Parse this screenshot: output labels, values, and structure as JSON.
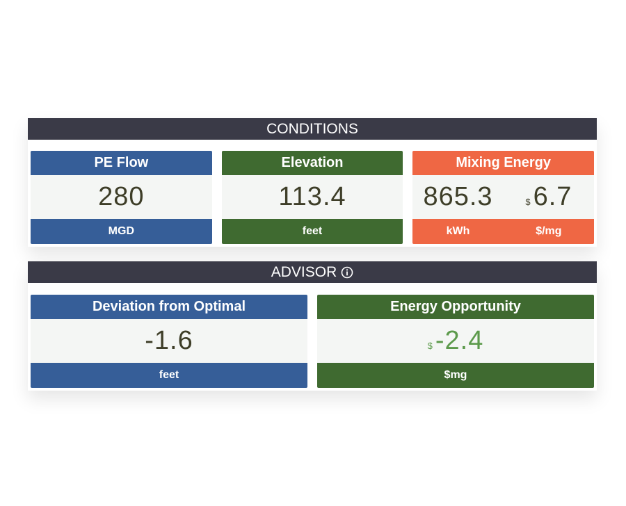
{
  "sections": [
    {
      "title": "CONDITIONS",
      "cards": [
        {
          "title": "PE Flow",
          "items": [
            {
              "value": "280",
              "unit": "MGD"
            }
          ]
        },
        {
          "title": "Elevation",
          "items": [
            {
              "value": "113.4",
              "unit": "feet"
            }
          ]
        },
        {
          "title": "Mixing Energy",
          "items": [
            {
              "value": "865.3",
              "unit": "kWh"
            },
            {
              "prefix": "$",
              "value": "6.7",
              "unit": "$/mg"
            }
          ]
        }
      ]
    },
    {
      "title": "ADVISOR",
      "cards": [
        {
          "title": "Deviation from Optimal",
          "items": [
            {
              "value": "-1.6",
              "unit": "feet"
            }
          ]
        },
        {
          "title": "Energy Opportunity",
          "items": [
            {
              "prefix": "$",
              "value": "-2.4",
              "unit": "$mg"
            }
          ]
        }
      ]
    }
  ]
}
